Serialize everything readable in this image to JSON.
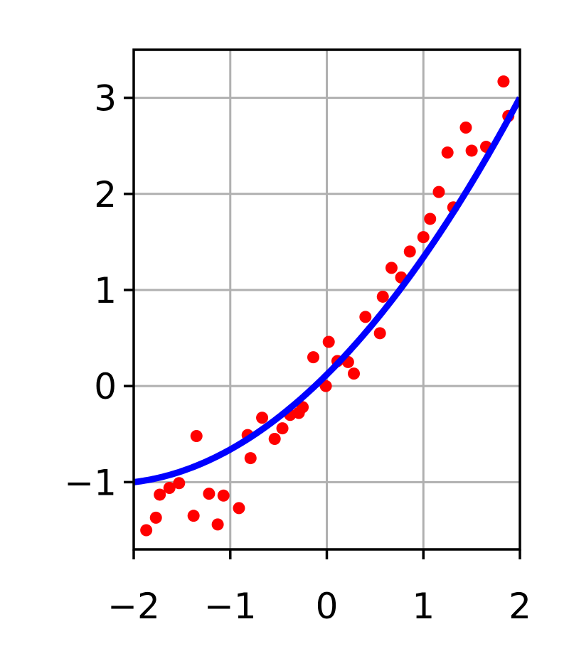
{
  "chart_data": {
    "type": "scatter",
    "title": "",
    "xlabel": "",
    "ylabel": "",
    "xlim": [
      -2,
      2
    ],
    "ylim": [
      -1.7,
      3.5
    ],
    "grid": true,
    "legend": "none",
    "x_ticks": [
      -2,
      -1,
      0,
      1,
      2
    ],
    "x_tick_labels": [
      "−2",
      "−1",
      "0",
      "1",
      "2"
    ],
    "y_ticks": [
      -1,
      0,
      1,
      2,
      3
    ],
    "y_tick_labels": [
      "−1",
      "0",
      "1",
      "2",
      "3"
    ],
    "colors": {
      "points": "#ff0000",
      "fit_line": "#0000ff",
      "grid": "#b0b0b0",
      "axes": "#000000"
    },
    "series": [
      {
        "type": "scatter",
        "points": [
          [
            -1.87,
            -1.5
          ],
          [
            -1.77,
            -1.37
          ],
          [
            -1.73,
            -1.13
          ],
          [
            -1.63,
            -1.06
          ],
          [
            -1.53,
            -1.01
          ],
          [
            -1.38,
            -1.35
          ],
          [
            -1.35,
            -0.52
          ],
          [
            -1.22,
            -1.12
          ],
          [
            -1.13,
            -1.44
          ],
          [
            -1.07,
            -1.14
          ],
          [
            -0.91,
            -1.27
          ],
          [
            -0.82,
            -0.51
          ],
          [
            -0.79,
            -0.75
          ],
          [
            -0.67,
            -0.33
          ],
          [
            -0.54,
            -0.55
          ],
          [
            -0.46,
            -0.44
          ],
          [
            -0.38,
            -0.3
          ],
          [
            -0.29,
            -0.28
          ],
          [
            -0.25,
            -0.22
          ],
          [
            -0.14,
            0.3
          ],
          [
            -0.01,
            0.0
          ],
          [
            0.02,
            0.46
          ],
          [
            0.11,
            0.26
          ],
          [
            0.22,
            0.25
          ],
          [
            0.28,
            0.13
          ],
          [
            0.4,
            0.72
          ],
          [
            0.55,
            0.55
          ],
          [
            0.58,
            0.93
          ],
          [
            0.67,
            1.23
          ],
          [
            0.77,
            1.13
          ],
          [
            0.86,
            1.4
          ],
          [
            1.0,
            1.55
          ],
          [
            1.07,
            1.74
          ],
          [
            1.16,
            2.02
          ],
          [
            1.25,
            2.43
          ],
          [
            1.31,
            1.86
          ],
          [
            1.44,
            2.69
          ],
          [
            1.5,
            2.45
          ],
          [
            1.65,
            2.49
          ],
          [
            1.83,
            3.17
          ],
          [
            1.88,
            2.81
          ]
        ]
      },
      {
        "type": "line",
        "curve": {
          "form": "a*x^2 + b*x + c",
          "a": 0.22,
          "b": 1.0,
          "c": 0.12
        }
      }
    ]
  }
}
